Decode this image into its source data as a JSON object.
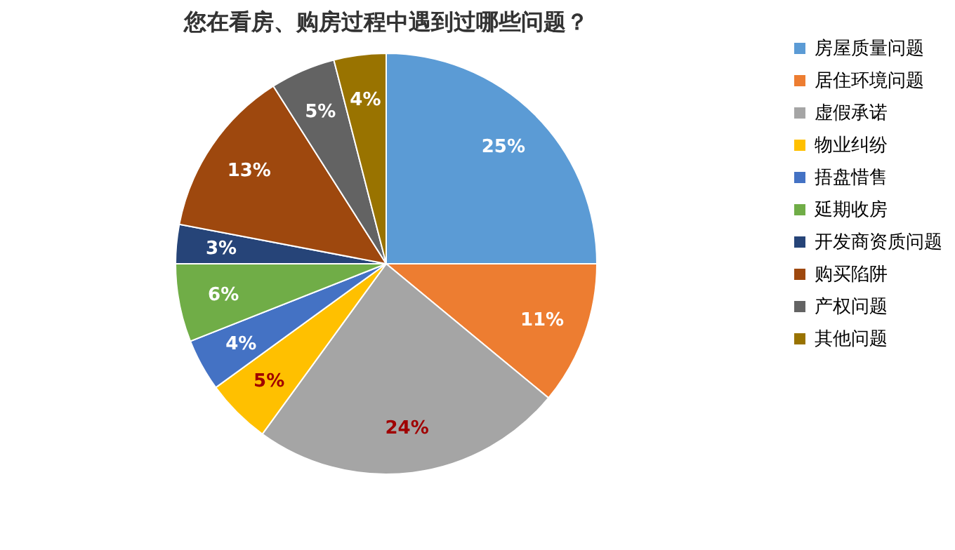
{
  "chart_data": {
    "type": "pie",
    "title": "您在看房、购房过程中遇到过哪些问题？",
    "categories": [
      "房屋质量问题",
      "居住环境问题",
      "虚假承诺",
      "物业纠纷",
      "捂盘惜售",
      "延期收房",
      "开发商资质问题",
      "购买陷阱",
      "产权问题",
      "其他问题"
    ],
    "values": [
      25,
      11,
      24,
      5,
      4,
      6,
      3,
      13,
      5,
      4
    ],
    "colors": [
      "#5b9bd5",
      "#ed7d31",
      "#a5a5a5",
      "#ffc000",
      "#4472c4",
      "#70ad47",
      "#264478",
      "#9e480e",
      "#636363",
      "#997300"
    ],
    "value_labels": [
      "25%",
      "11%",
      "24%",
      "5%",
      "4%",
      "6%",
      "3%",
      "13%",
      "5%",
      "4%"
    ],
    "legend": "right"
  }
}
